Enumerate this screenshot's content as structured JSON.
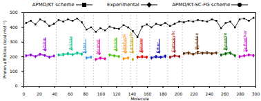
{
  "chart_data": {
    "type": "line",
    "x_label": "Molecule",
    "y_label": "Proton affinities (kcal mol⁻¹)",
    "xlim": [
      0,
      300
    ],
    "xticks": [
      0,
      20,
      40,
      60,
      80,
      100,
      120,
      140,
      160,
      180,
      200,
      220,
      240,
      260,
      280,
      300
    ],
    "ylim": [
      0,
      500
    ],
    "yticks": [
      0,
      100,
      200,
      300,
      400,
      500
    ],
    "legend": "top",
    "x": [
      3,
      9,
      15,
      21,
      27,
      33,
      39,
      45,
      51,
      57,
      63,
      69,
      75,
      81,
      87,
      93,
      99,
      105,
      111,
      117,
      123,
      129,
      135,
      141,
      147,
      153,
      159,
      165,
      171,
      177,
      183,
      189,
      195,
      201,
      207,
      213,
      219,
      225,
      231,
      237,
      243,
      249,
      255,
      261,
      267,
      273,
      279,
      285,
      291,
      297
    ],
    "series": [
      {
        "name": "APMO/KT scheme",
        "color": "#000000",
        "marker": "square",
        "values": [
          430,
          445,
          420,
          455,
          440,
          410,
          425,
          450,
          440,
          455,
          445,
          460,
          435,
          385,
          400,
          370,
          395,
          380,
          405,
          395,
          390,
          415,
          400,
          375,
          335,
          405,
          420,
          400,
          425,
          415,
          430,
          410,
          425,
          440,
          435,
          445,
          440,
          450,
          445,
          440,
          455,
          445,
          395,
          430,
          440,
          400,
          455,
          460,
          445,
          465
        ]
      },
      {
        "name": "Experimental",
        "marker": "diamond",
        "values": [
          205,
          210,
          200,
          215,
          208,
          195,
          205,
          210,
          212,
          218,
          213,
          222,
          215,
          190,
          195,
          180,
          188,
          185,
          210,
          205,
          200,
          185,
          190,
          180,
          195,
          198,
          195,
          190,
          198,
          195,
          200,
          195,
          205,
          200,
          220,
          222,
          215,
          225,
          222,
          225,
          220,
          224,
          210,
          218,
          222,
          205,
          198,
          205,
          210,
          206
        ]
      },
      {
        "name": "APMO/KT-SC-FG scheme",
        "marker": "circle",
        "values": [
          210,
          215,
          205,
          220,
          212,
          200,
          208,
          215,
          220,
          225,
          218,
          230,
          222,
          195,
          200,
          185,
          195,
          190,
          215,
          210,
          205,
          190,
          195,
          185,
          200,
          205,
          200,
          195,
          205,
          200,
          208,
          200,
          210,
          205,
          225,
          230,
          220,
          235,
          228,
          232,
          225,
          230,
          215,
          225,
          230,
          210,
          205,
          210,
          215,
          212
        ]
      }
    ],
    "groups": [
      {
        "name": "Amine",
        "start": 1,
        "end": 41,
        "color": "#9400d3",
        "arrow_x": 28,
        "arrow_top": 330,
        "arrow_bottom": 240
      },
      {
        "name": "Aniline",
        "start": 42,
        "end": 77,
        "color": "#00c08a",
        "arrow_x": 62,
        "arrow_top": 335,
        "arrow_bottom": 245
      },
      {
        "name": "Ester",
        "start": 78,
        "end": 89,
        "color": "#2f8fe0",
        "arrow_x": 80,
        "arrow_top": 320,
        "arrow_bottom": 225
      },
      {
        "name": "Alcohol",
        "start": 90,
        "end": 108,
        "color": "#e000a0",
        "arrow_x": 98,
        "arrow_top": 320,
        "arrow_bottom": 215
      },
      {
        "name": "Amide",
        "start": 109,
        "end": 126,
        "color": "#40c000",
        "arrow_x": 120,
        "arrow_top": 330,
        "arrow_bottom": 240
      },
      {
        "name": "Aldehyde",
        "start": 127,
        "end": 137,
        "color": "#ff8c00",
        "arrow_x": 132,
        "arrow_top": 330,
        "arrow_bottom": 225
      },
      {
        "name": "Carboxylic",
        "start": 138,
        "end": 145,
        "color": "#c0a000",
        "arrow_x": 141,
        "arrow_top": 330,
        "arrow_bottom": 225
      },
      {
        "name": "Ketone",
        "start": 146,
        "end": 162,
        "color": "#e00000",
        "arrow_x": 153,
        "arrow_top": 320,
        "arrow_bottom": 230
      },
      {
        "name": "Ether",
        "start": 163,
        "end": 185,
        "color": "#0000b0",
        "arrow_x": 175,
        "arrow_top": 320,
        "arrow_bottom": 225
      },
      {
        "name": "Carbonylic",
        "start": 186,
        "end": 204,
        "color": "#a00000",
        "arrow_x": 195,
        "arrow_top": 330,
        "arrow_bottom": 230
      },
      {
        "name": "Pyridine",
        "start": 205,
        "end": 252,
        "color": "#5a2a00",
        "arrow_x": 225,
        "arrow_top": 340,
        "arrow_bottom": 250
      },
      {
        "name": "Pyrazole",
        "start": 253,
        "end": 276,
        "color": "#006400",
        "arrow_x": 262,
        "arrow_top": 335,
        "arrow_bottom": 245
      },
      {
        "name": "Sulfoether",
        "start": 277,
        "end": 300,
        "color": "#c000c0",
        "arrow_x": 288,
        "arrow_top": 330,
        "arrow_bottom": 235
      }
    ]
  }
}
